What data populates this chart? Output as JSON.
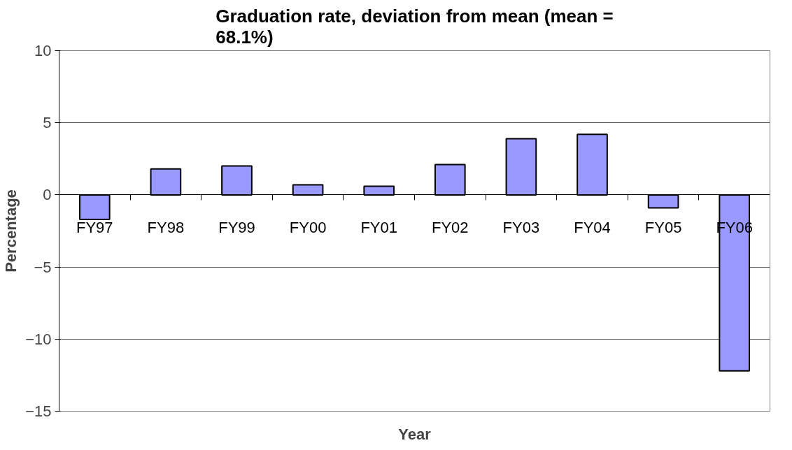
{
  "chart_data": {
    "type": "bar",
    "title": "Graduation rate, deviation from mean (mean = 68.1%)",
    "xlabel": "Year",
    "ylabel": "Percentage",
    "categories": [
      "FY97",
      "FY98",
      "FY99",
      "FY00",
      "FY01",
      "FY02",
      "FY03",
      "FY04",
      "FY05",
      "FY06"
    ],
    "values": [
      -1.7,
      1.8,
      2.0,
      0.7,
      0.6,
      2.1,
      3.9,
      4.2,
      -0.9,
      -12.2
    ],
    "color": "#9999ff",
    "ylim": [
      -15,
      10
    ],
    "yticks": [
      -15,
      -10,
      -5,
      0,
      5,
      10
    ],
    "grid": "y"
  }
}
